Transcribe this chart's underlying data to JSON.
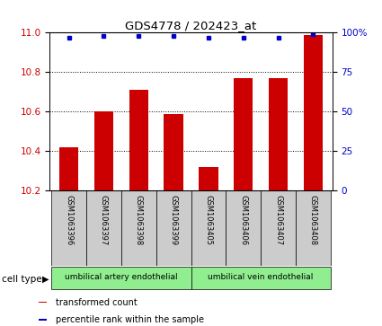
{
  "title": "GDS4778 / 202423_at",
  "samples": [
    "GSM1063396",
    "GSM1063397",
    "GSM1063398",
    "GSM1063399",
    "GSM1063405",
    "GSM1063406",
    "GSM1063407",
    "GSM1063408"
  ],
  "transformed_counts": [
    10.42,
    10.6,
    10.71,
    10.59,
    10.32,
    10.77,
    10.77,
    10.99
  ],
  "percentile_ranks": [
    97,
    98,
    98,
    98,
    97,
    97,
    97,
    99
  ],
  "ylim_left": [
    10.2,
    11.0
  ],
  "ylim_right": [
    0,
    100
  ],
  "yticks_left": [
    10.2,
    10.4,
    10.6,
    10.8,
    11.0
  ],
  "yticks_right": [
    0,
    25,
    50,
    75,
    100
  ],
  "bar_color": "#cc0000",
  "dot_color": "#0000cc",
  "cell_type_groups": [
    {
      "label": "umbilical artery endothelial",
      "span": [
        0,
        3
      ]
    },
    {
      "label": "umbilical vein endothelial",
      "span": [
        4,
        7
      ]
    }
  ],
  "cell_type_label": "cell type",
  "legend_bar_label": "transformed count",
  "legend_dot_label": "percentile rank within the sample",
  "bar_bottom": 10.2,
  "tick_label_color_left": "#cc0000",
  "tick_label_color_right": "#0000cc",
  "green_color": "#90ee90",
  "gray_color": "#cccccc",
  "grid_linestyle": ":",
  "grid_linewidth": 0.7
}
